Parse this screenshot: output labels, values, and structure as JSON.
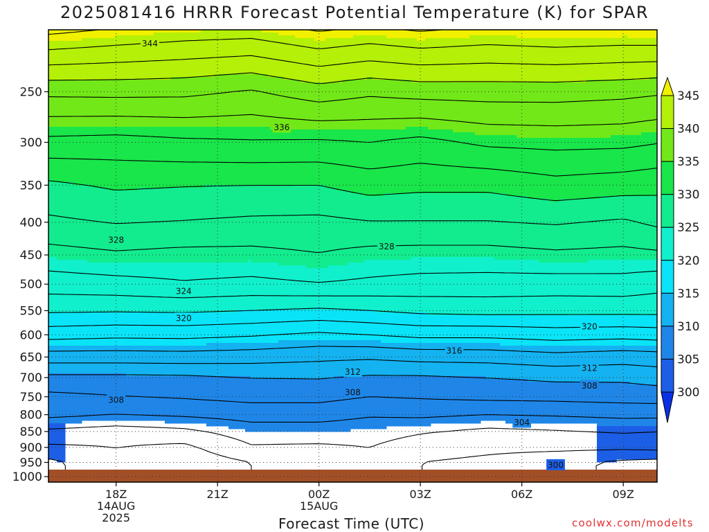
{
  "title": "2025081416 HRRR Forecast Potential Temperature (K) for SPAR",
  "x_axis_label": "Forecast Time (UTC)",
  "source": "coolwx.com/modelts",
  "chart_data": {
    "type": "heatmap",
    "title": "2025081416 HRRR Forecast Potential Temperature (K) for SPAR",
    "xlabel": "Forecast Time (UTC)",
    "ylabel": "",
    "x_ticks": [
      {
        "hour": 18,
        "label": "18Z",
        "sub1": "14AUG",
        "sub2": "2025"
      },
      {
        "hour": 21,
        "label": "21Z",
        "sub1": "",
        "sub2": ""
      },
      {
        "hour": 24,
        "label": "00Z",
        "sub1": "15AUG",
        "sub2": ""
      },
      {
        "hour": 27,
        "label": "03Z",
        "sub1": "",
        "sub2": ""
      },
      {
        "hour": 30,
        "label": "06Z",
        "sub1": "",
        "sub2": ""
      },
      {
        "hour": 33,
        "label": "09Z",
        "sub1": "",
        "sub2": ""
      }
    ],
    "xlim_hours": [
      16,
      34
    ],
    "y_scale": "log",
    "y_ticks": [
      250,
      300,
      350,
      400,
      450,
      500,
      550,
      600,
      650,
      700,
      750,
      800,
      850,
      900,
      950,
      1000
    ],
    "ylim_hPa": [
      200,
      1020
    ],
    "ground_level_hPa": 975,
    "colorbar": {
      "levels": [
        300,
        305,
        310,
        315,
        320,
        325,
        330,
        335,
        340,
        345
      ],
      "colors": [
        "#0a30e6",
        "#1c5fe6",
        "#1f86e8",
        "#14b2f0",
        "#0ae4f8",
        "#10f0cc",
        "#12ec8e",
        "#18e64a",
        "#72e818",
        "#b4f008",
        "#f0f000"
      ],
      "extend": "both"
    },
    "contour_levels": [
      300,
      302,
      304,
      306,
      308,
      310,
      312,
      314,
      316,
      318,
      320,
      322,
      324,
      326,
      328,
      330,
      332,
      334,
      336,
      338,
      340,
      342,
      344,
      346
    ],
    "contour_labels": [
      {
        "value": 344,
        "x_hour": 19.0,
        "p": 210
      },
      {
        "value": 336,
        "x_hour": 22.9,
        "p": 284
      },
      {
        "value": 328,
        "x_hour": 18.0,
        "p": 426
      },
      {
        "value": 328,
        "x_hour": 26.0,
        "p": 436
      },
      {
        "value": 324,
        "x_hour": 20.0,
        "p": 512
      },
      {
        "value": 320,
        "x_hour": 20.0,
        "p": 565
      },
      {
        "value": 320,
        "x_hour": 32.0,
        "p": 582
      },
      {
        "value": 316,
        "x_hour": 28.0,
        "p": 635
      },
      {
        "value": 312,
        "x_hour": 25.0,
        "p": 685
      },
      {
        "value": 312,
        "x_hour": 32.0,
        "p": 676
      },
      {
        "value": 308,
        "x_hour": 18.0,
        "p": 758
      },
      {
        "value": 308,
        "x_hour": 25.0,
        "p": 737
      },
      {
        "value": 308,
        "x_hour": 32.0,
        "p": 720
      },
      {
        "value": 304,
        "x_hour": 30.0,
        "p": 822
      },
      {
        "value": 300,
        "x_hour": 31.0,
        "p": 958
      }
    ],
    "theta_profiles": [
      {
        "x_hour": 16.0,
        "theta": [
          [
            200,
            346.6
          ],
          [
            250,
            338.5
          ],
          [
            300,
            333.4
          ],
          [
            350,
            329.6
          ],
          [
            400,
            327.6
          ],
          [
            450,
            325.2
          ],
          [
            500,
            323.0
          ],
          [
            550,
            320.3
          ],
          [
            600,
            316.8
          ],
          [
            650,
            313.0
          ],
          [
            700,
            309.5
          ],
          [
            750,
            307.5
          ],
          [
            800,
            306.5
          ],
          [
            850,
            303.6
          ],
          [
            900,
            301.6
          ],
          [
            950,
            299.5
          ],
          [
            1000,
            299.5
          ]
        ]
      },
      {
        "x_hour": 18.0,
        "theta": [
          [
            200,
            345.8
          ],
          [
            250,
            338.6
          ],
          [
            300,
            333.2
          ],
          [
            350,
            330.3
          ],
          [
            400,
            328.1
          ],
          [
            450,
            325.7
          ],
          [
            500,
            323.3
          ],
          [
            550,
            320.2
          ],
          [
            600,
            316.5
          ],
          [
            650,
            313.0
          ],
          [
            700,
            309.5
          ],
          [
            750,
            307.9
          ],
          [
            800,
            306.0
          ],
          [
            850,
            303.0
          ],
          [
            900,
            302.0
          ],
          [
            950,
            301.5
          ],
          [
            1000,
            301.5
          ]
        ]
      },
      {
        "x_hour": 20.0,
        "theta": [
          [
            200,
            345.2
          ],
          [
            250,
            338.5
          ],
          [
            300,
            333.6
          ],
          [
            350,
            330.1
          ],
          [
            400,
            327.9
          ],
          [
            450,
            325.4
          ],
          [
            500,
            323.8
          ],
          [
            550,
            320.3
          ],
          [
            600,
            316.6
          ],
          [
            650,
            313.1
          ],
          [
            700,
            309.6
          ],
          [
            750,
            308.2
          ],
          [
            800,
            306.3
          ],
          [
            850,
            303.5
          ],
          [
            900,
            301.5
          ],
          [
            950,
            300.6
          ],
          [
            1000,
            300.6
          ]
        ]
      },
      {
        "x_hour": 22.0,
        "theta": [
          [
            200,
            345.0
          ],
          [
            250,
            337.8
          ],
          [
            300,
            333.8
          ],
          [
            350,
            330.0
          ],
          [
            400,
            327.6
          ],
          [
            450,
            325.4
          ],
          [
            500,
            323.5
          ],
          [
            550,
            320.0
          ],
          [
            600,
            316.2
          ],
          [
            650,
            312.9
          ],
          [
            700,
            310.0
          ],
          [
            750,
            308.6
          ],
          [
            800,
            306.8
          ],
          [
            850,
            305.0
          ],
          [
            900,
            303.8
          ],
          [
            950,
            302.0
          ],
          [
            1000,
            302.0
          ]
        ]
      },
      {
        "x_hour": 24.0,
        "theta": [
          [
            200,
            346.2
          ],
          [
            250,
            339.1
          ],
          [
            300,
            333.7
          ],
          [
            350,
            330.0
          ],
          [
            400,
            327.5
          ],
          [
            450,
            325.9
          ],
          [
            500,
            323.9
          ],
          [
            550,
            319.6
          ],
          [
            600,
            315.6
          ],
          [
            650,
            312.5
          ],
          [
            700,
            310.1
          ],
          [
            750,
            308.6
          ],
          [
            800,
            306.8
          ],
          [
            850,
            305.0
          ],
          [
            900,
            303.7
          ],
          [
            950,
            302.2
          ],
          [
            1000,
            302.2
          ]
        ]
      },
      {
        "x_hour": 25.5,
        "theta": [
          [
            200,
            345.6
          ],
          [
            250,
            338.4
          ],
          [
            300,
            334.0
          ],
          [
            350,
            330.8
          ],
          [
            400,
            327.9
          ],
          [
            450,
            325.3
          ],
          [
            500,
            323.6
          ],
          [
            550,
            320.0
          ],
          [
            600,
            316.0
          ],
          [
            650,
            312.3
          ],
          [
            700,
            309.7
          ],
          [
            750,
            308.0
          ],
          [
            800,
            306.2
          ],
          [
            850,
            304.8
          ],
          [
            900,
            304.0
          ],
          [
            950,
            303.5
          ],
          [
            1000,
            303.5
          ]
        ]
      },
      {
        "x_hour": 27.0,
        "theta": [
          [
            200,
            346.2
          ],
          [
            250,
            338.8
          ],
          [
            300,
            333.4
          ],
          [
            350,
            330.5
          ],
          [
            400,
            327.9
          ],
          [
            450,
            325.2
          ],
          [
            500,
            323.3
          ],
          [
            550,
            320.5
          ],
          [
            600,
            316.5
          ],
          [
            650,
            312.7
          ],
          [
            700,
            309.7
          ],
          [
            750,
            308.2
          ],
          [
            800,
            306.4
          ],
          [
            850,
            304.2
          ],
          [
            900,
            303.0
          ],
          [
            950,
            302.0
          ],
          [
            1000,
            302.0
          ]
        ]
      },
      {
        "x_hour": 29.0,
        "theta": [
          [
            200,
            345.6
          ],
          [
            250,
            338.9
          ],
          [
            300,
            334.4
          ],
          [
            350,
            330.5
          ],
          [
            400,
            327.9
          ],
          [
            450,
            325.2
          ],
          [
            500,
            323.2
          ],
          [
            550,
            320.7
          ],
          [
            600,
            316.5
          ],
          [
            650,
            312.8
          ],
          [
            700,
            310.0
          ],
          [
            750,
            308.5
          ],
          [
            800,
            306.0
          ],
          [
            850,
            303.5
          ],
          [
            900,
            302.5
          ],
          [
            950,
            301.5
          ],
          [
            1000,
            301.5
          ]
        ]
      },
      {
        "x_hour": 31.0,
        "theta": [
          [
            200,
            346.0
          ],
          [
            250,
            338.9
          ],
          [
            300,
            334.6
          ],
          [
            350,
            331.3
          ],
          [
            400,
            328.2
          ],
          [
            450,
            325.6
          ],
          [
            500,
            323.1
          ],
          [
            550,
            320.6
          ],
          [
            600,
            316.9
          ],
          [
            650,
            313.3
          ],
          [
            700,
            310.4
          ],
          [
            750,
            308.6
          ],
          [
            800,
            306.2
          ],
          [
            850,
            303.8
          ],
          [
            900,
            302.5
          ],
          [
            950,
            300.6
          ],
          [
            1000,
            300.6
          ]
        ]
      },
      {
        "x_hour": 33.0,
        "theta": [
          [
            200,
            345.8
          ],
          [
            250,
            338.6
          ],
          [
            300,
            334.5
          ],
          [
            350,
            330.9
          ],
          [
            400,
            327.7
          ],
          [
            450,
            325.4
          ],
          [
            500,
            323.2
          ],
          [
            550,
            320.6
          ],
          [
            600,
            316.7
          ],
          [
            650,
            312.9
          ],
          [
            700,
            310.4
          ],
          [
            750,
            308.8
          ],
          [
            800,
            306.5
          ],
          [
            850,
            304.2
          ],
          [
            900,
            302.4
          ],
          [
            950,
            299.6
          ],
          [
            1000,
            299.6
          ]
        ]
      },
      {
        "x_hour": 34.0,
        "theta": [
          [
            200,
            345.9
          ],
          [
            250,
            338.3
          ],
          [
            300,
            334.1
          ],
          [
            350,
            330.6
          ],
          [
            400,
            328.4
          ],
          [
            450,
            325.6
          ],
          [
            500,
            322.7
          ],
          [
            550,
            320.6
          ],
          [
            600,
            316.9
          ],
          [
            650,
            313.1
          ],
          [
            700,
            310.8
          ],
          [
            750,
            308.9
          ],
          [
            800,
            306.5
          ],
          [
            850,
            304.0
          ],
          [
            900,
            302.6
          ],
          [
            950,
            299.3
          ],
          [
            1000,
            299.3
          ]
        ]
      }
    ]
  }
}
